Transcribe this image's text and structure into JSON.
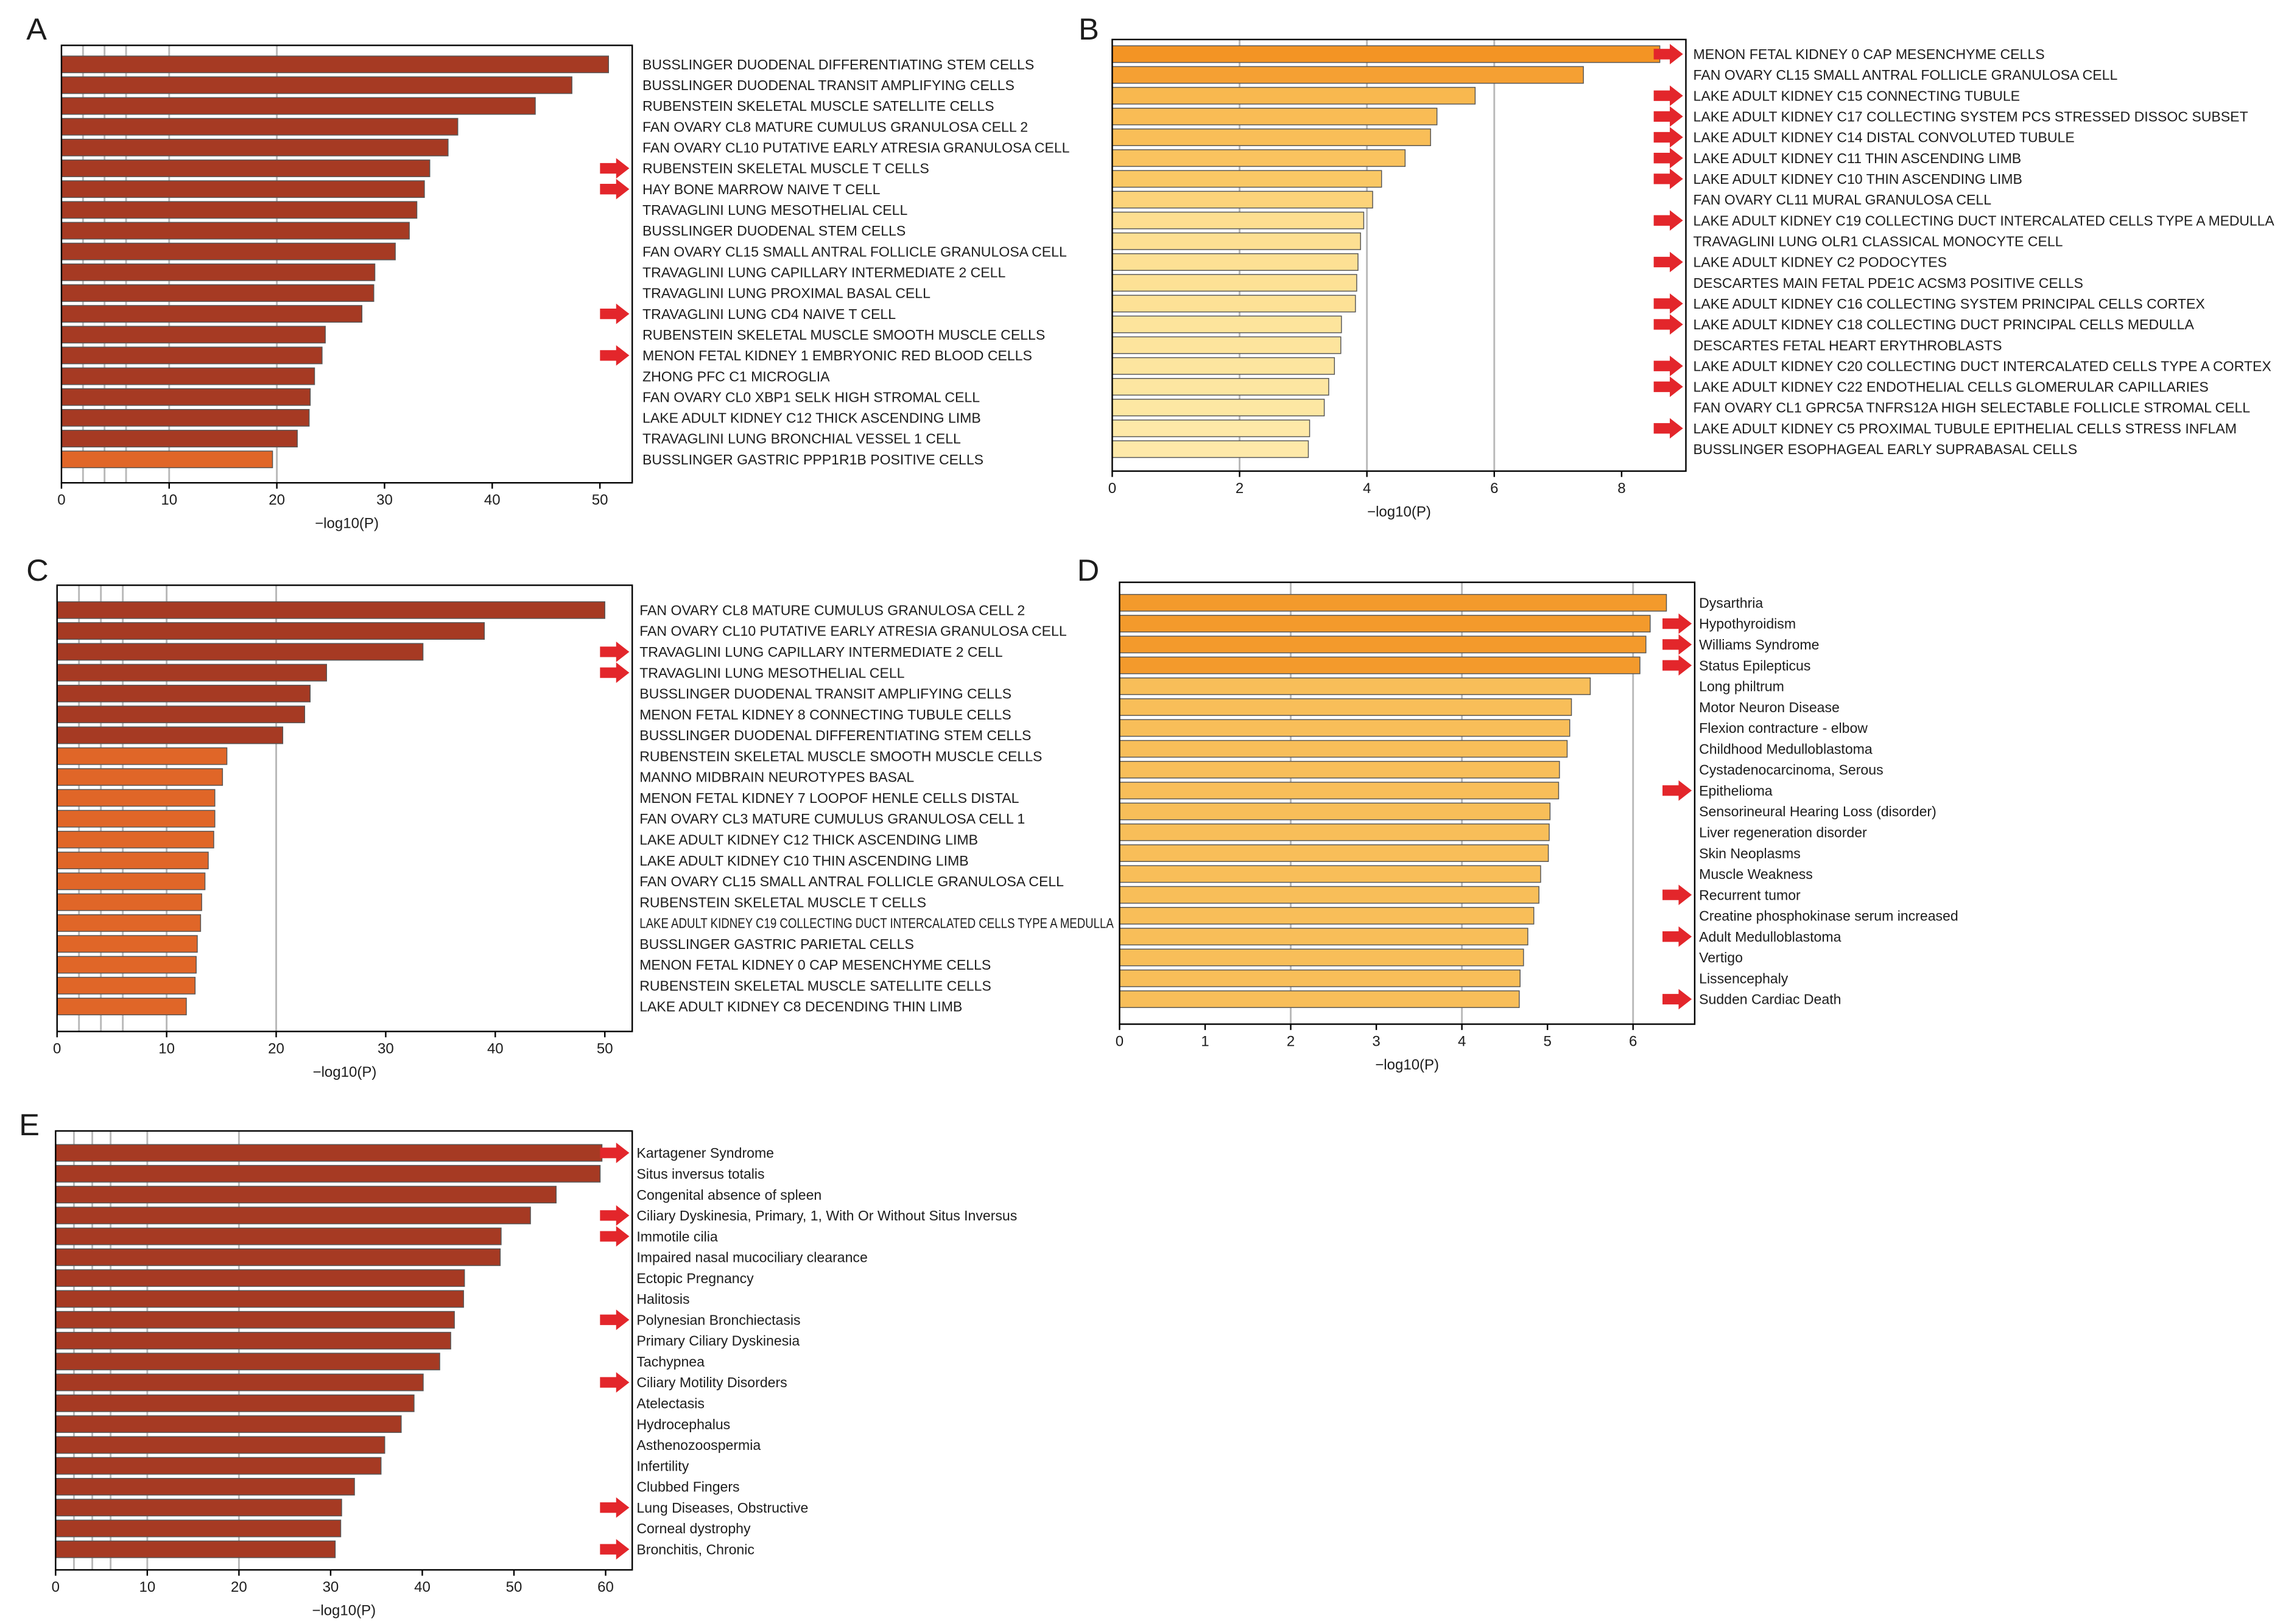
{
  "style": {
    "arrow_color": "#e3262b",
    "bar_edge_color": "#555555",
    "reference_line_color": "#b8b8b8",
    "axis_color": "#000000"
  },
  "chart_data": [
    {
      "panel_label": "A",
      "type": "bar",
      "orientation": "horizontal",
      "xlabel": "−log10(P)",
      "xlim": [
        0,
        53
      ],
      "xticks": [
        0,
        10,
        20,
        30,
        40,
        50
      ],
      "reference_lines": [
        2,
        4,
        6,
        10,
        20
      ],
      "categories": [
        "BUSSLINGER DUODENAL DIFFERENTIATING STEM CELLS",
        "BUSSLINGER DUODENAL TRANSIT AMPLIFYING CELLS",
        "RUBENSTEIN SKELETAL MUSCLE SATELLITE CELLS",
        "FAN OVARY CL8 MATURE CUMULUS GRANULOSA CELL 2",
        "FAN OVARY CL10 PUTATIVE EARLY ATRESIA GRANULOSA CELL",
        "RUBENSTEIN SKELETAL MUSCLE T CELLS",
        "HAY BONE MARROW NAIVE T CELL",
        "TRAVAGLINI LUNG MESOTHELIAL CELL",
        "BUSSLINGER DUODENAL STEM CELLS",
        "FAN OVARY CL15 SMALL ANTRAL FOLLICLE GRANULOSA CELL",
        "TRAVAGLINI LUNG CAPILLARY INTERMEDIATE 2 CELL",
        "TRAVAGLINI LUNG PROXIMAL BASAL CELL",
        "TRAVAGLINI LUNG CD4 NAIVE T CELL",
        "RUBENSTEIN SKELETAL MUSCLE SMOOTH MUSCLE CELLS",
        "MENON FETAL KIDNEY 1 EMBRYONIC RED BLOOD CELLS",
        "ZHONG PFC C1 MICROGLIA",
        "FAN OVARY CL0 XBP1 SELK HIGH STROMAL CELL",
        "LAKE ADULT KIDNEY C12 THICK ASCENDING LIMB",
        "TRAVAGLINI LUNG BRONCHIAL VESSEL 1 CELL",
        "BUSSLINGER GASTRIC PPP1R1B POSITIVE CELLS"
      ],
      "values": [
        50.8,
        47.4,
        44.0,
        36.8,
        35.9,
        34.2,
        33.7,
        33.0,
        32.3,
        31.0,
        29.1,
        29.0,
        27.9,
        24.5,
        24.2,
        23.5,
        23.1,
        23.0,
        21.9,
        19.6
      ],
      "bar_colors": [
        "#a63a23",
        "#a63a23",
        "#a63a23",
        "#a63a23",
        "#a63a23",
        "#a63a23",
        "#a63a23",
        "#a63a23",
        "#a63a23",
        "#a63a23",
        "#a63a23",
        "#a63a23",
        "#a63a23",
        "#a63a23",
        "#a63a23",
        "#a63a23",
        "#a63a23",
        "#a63a23",
        "#a63a23",
        "#e06628"
      ],
      "arrows": [
        false,
        false,
        false,
        false,
        false,
        true,
        true,
        false,
        false,
        false,
        false,
        false,
        true,
        false,
        true,
        false,
        false,
        false,
        false,
        false
      ]
    },
    {
      "panel_label": "B",
      "type": "bar",
      "orientation": "horizontal",
      "xlabel": "−log10(P)",
      "xlim": [
        0,
        9.01
      ],
      "xticks": [
        0,
        2,
        4,
        6,
        8
      ],
      "reference_lines": [
        2,
        4,
        6
      ],
      "categories": [
        "MENON FETAL KIDNEY 0 CAP MESENCHYME CELLS",
        "FAN OVARY CL15 SMALL ANTRAL FOLLICLE GRANULOSA CELL",
        "LAKE ADULT KIDNEY C15 CONNECTING TUBULE",
        "LAKE ADULT KIDNEY C17 COLLECTING SYSTEM PCS STRESSED DISSOC SUBSET",
        "LAKE ADULT KIDNEY C14 DISTAL CONVOLUTED TUBULE",
        "LAKE ADULT KIDNEY C11 THIN ASCENDING LIMB",
        "LAKE ADULT KIDNEY C10 THIN ASCENDING LIMB",
        "FAN OVARY CL11 MURAL GRANULOSA CELL",
        "LAKE ADULT KIDNEY C19 COLLECTING DUCT INTERCALATED CELLS TYPE A MEDULLA",
        "TRAVAGLINI LUNG OLR1 CLASSICAL MONOCYTE CELL",
        "LAKE ADULT KIDNEY C2 PODOCYTES",
        "DESCARTES MAIN FETAL PDE1C ACSM3 POSITIVE CELLS",
        "LAKE ADULT KIDNEY C16 COLLECTING SYSTEM PRINCIPAL CELLS CORTEX",
        "LAKE ADULT KIDNEY C18 COLLECTING DUCT PRINCIPAL CELLS MEDULLA",
        "DESCARTES FETAL HEART ERYTHROBLASTS",
        "LAKE ADULT KIDNEY C20 COLLECTING DUCT INTERCALATED CELLS TYPE A CORTEX",
        "LAKE ADULT KIDNEY C22 ENDOTHELIAL CELLS GLOMERULAR CAPILLARIES",
        "FAN OVARY CL1 GPRC5A TNFRS12A HIGH SELECTABLE FOLLICLE STROMAL CELL",
        "LAKE ADULT KIDNEY C5 PROXIMAL TUBULE EPITHELIAL CELLS STRESS INFLAM",
        "BUSSLINGER ESOPHAGEAL EARLY SUPRABASAL CELLS"
      ],
      "values": [
        8.6,
        7.4,
        5.7,
        5.1,
        5.0,
        4.6,
        4.23,
        4.09,
        3.95,
        3.9,
        3.86,
        3.84,
        3.82,
        3.6,
        3.59,
        3.49,
        3.4,
        3.33,
        3.1,
        3.08
      ],
      "bar_colors": [
        "#f39424",
        "#f5a033",
        "#f8b84f",
        "#f9bc55",
        "#f9be58",
        "#fac35f",
        "#fac865",
        "#fcd37a",
        "#fdde90",
        "#fddf92",
        "#fde094",
        "#fde195",
        "#fde196",
        "#fde49c",
        "#fde49d",
        "#fde59f",
        "#fde6a1",
        "#fde7a3",
        "#fee9a8",
        "#fee9a9"
      ],
      "arrows": [
        true,
        false,
        true,
        true,
        true,
        true,
        true,
        false,
        true,
        false,
        true,
        false,
        true,
        true,
        false,
        true,
        true,
        false,
        true,
        false
      ]
    },
    {
      "panel_label": "C",
      "type": "bar",
      "orientation": "horizontal",
      "xlabel": "−log10(P)",
      "xlim": [
        0,
        52.5
      ],
      "xticks": [
        0,
        10,
        20,
        30,
        40,
        50
      ],
      "reference_lines": [
        2,
        4,
        6,
        10,
        20
      ],
      "categories": [
        "FAN OVARY CL8 MATURE CUMULUS GRANULOSA CELL 2",
        "FAN OVARY CL10 PUTATIVE EARLY ATRESIA GRANULOSA CELL",
        "TRAVAGLINI LUNG CAPILLARY INTERMEDIATE 2 CELL",
        "TRAVAGLINI LUNG MESOTHELIAL CELL",
        "BUSSLINGER DUODENAL TRANSIT AMPLIFYING CELLS",
        "MENON FETAL KIDNEY 8 CONNECTING TUBULE CELLS",
        "BUSSLINGER DUODENAL DIFFERENTIATING STEM CELLS",
        "RUBENSTEIN SKELETAL MUSCLE SMOOTH MUSCLE CELLS",
        "MANNO MIDBRAIN NEUROTYPES BASAL",
        "MENON FETAL KIDNEY 7 LOOPOF HENLE CELLS DISTAL",
        "FAN OVARY CL3 MATURE CUMULUS GRANULOSA CELL 1",
        "LAKE ADULT KIDNEY C12 THICK ASCENDING LIMB",
        "LAKE ADULT KIDNEY C10 THIN ASCENDING LIMB",
        "FAN OVARY CL15 SMALL ANTRAL FOLLICLE GRANULOSA CELL",
        "RUBENSTEIN SKELETAL MUSCLE T CELLS",
        "LAKE ADULT KIDNEY C19 COLLECTING DUCT INTERCALATED CELLS TYPE A MEDULLA",
        "BUSSLINGER GASTRIC PARIETAL CELLS",
        "MENON FETAL KIDNEY 0 CAP MESENCHYME CELLS",
        "RUBENSTEIN SKELETAL MUSCLE SATELLITE CELLS",
        "LAKE ADULT KIDNEY C8 DECENDING THIN LIMB"
      ],
      "values": [
        50.0,
        39.0,
        33.4,
        24.6,
        23.1,
        22.6,
        20.6,
        15.5,
        15.1,
        14.4,
        14.4,
        14.3,
        13.8,
        13.5,
        13.2,
        13.1,
        12.8,
        12.7,
        12.6,
        11.8
      ],
      "bar_colors": [
        "#a63a23",
        "#a63a23",
        "#a63a23",
        "#a63a23",
        "#a63a23",
        "#a63a23",
        "#a63a23",
        "#e06628",
        "#e06628",
        "#e06628",
        "#e06628",
        "#e06628",
        "#e06628",
        "#e06628",
        "#e06628",
        "#e06628",
        "#e06628",
        "#e06628",
        "#e06628",
        "#e06628"
      ],
      "arrows": [
        false,
        false,
        true,
        true,
        false,
        false,
        false,
        false,
        false,
        false,
        false,
        false,
        false,
        false,
        false,
        false,
        false,
        false,
        false,
        false
      ]
    },
    {
      "panel_label": "D",
      "type": "bar",
      "orientation": "horizontal",
      "xlabel": "−log10(P)",
      "xlim": [
        0,
        6.72
      ],
      "xticks": [
        0,
        1,
        2,
        3,
        4,
        5,
        6
      ],
      "reference_lines": [
        2,
        4,
        6
      ],
      "categories": [
        "Dysarthria",
        "Hypothyroidism",
        "Williams Syndrome",
        "Status Epilepticus",
        "Long philtrum",
        "Motor Neuron Disease",
        "Flexion contracture - elbow",
        "Childhood Medulloblastoma",
        "Cystadenocarcinoma, Serous",
        "Epithelioma",
        "Sensorineural Hearing Loss (disorder)",
        "Liver regeneration disorder",
        "Skin Neoplasms",
        "Muscle Weakness",
        "Recurrent tumor",
        "Creatine phosphokinase serum increased",
        "Adult Medulloblastoma",
        "Vertigo",
        "Lissencephaly",
        "Sudden Cardiac Death"
      ],
      "values": [
        6.39,
        6.2,
        6.15,
        6.08,
        5.5,
        5.28,
        5.26,
        5.23,
        5.14,
        5.13,
        5.03,
        5.02,
        5.01,
        4.92,
        4.9,
        4.84,
        4.77,
        4.72,
        4.68,
        4.67
      ],
      "bar_colors": [
        "#f39a2c",
        "#f39a2c",
        "#f39a2c",
        "#f39a2c",
        "#f8be59",
        "#f8be59",
        "#f8be59",
        "#f8be59",
        "#f8be59",
        "#f8be59",
        "#f8be59",
        "#f8be59",
        "#f8be59",
        "#f8be59",
        "#f8be59",
        "#f8be59",
        "#f8be59",
        "#f8be59",
        "#f8be59",
        "#f8be59"
      ],
      "arrows": [
        false,
        true,
        true,
        true,
        false,
        false,
        false,
        false,
        false,
        true,
        false,
        false,
        false,
        false,
        true,
        false,
        true,
        false,
        false,
        true
      ]
    },
    {
      "panel_label": "E",
      "type": "bar",
      "orientation": "horizontal",
      "xlabel": "−log10(P)",
      "xlim": [
        0,
        62.9
      ],
      "xticks": [
        0,
        10,
        20,
        30,
        40,
        50,
        60
      ],
      "reference_lines": [
        2,
        4,
        6,
        10,
        20
      ],
      "categories": [
        "Kartagener Syndrome",
        "Situs inversus totalis",
        "Congenital absence of spleen",
        "Ciliary Dyskinesia, Primary, 1, With Or Without Situs Inversus",
        "Immotile cilia",
        "Impaired nasal mucociliary clearance",
        "Ectopic Pregnancy",
        "Halitosis",
        "Polynesian Bronchiectasis",
        "Primary Ciliary Dyskinesia",
        "Tachypnea",
        "Ciliary Motility Disorders",
        "Atelectasis",
        "Hydrocephalus",
        "Asthenozoospermia",
        "Infertility",
        "Clubbed Fingers",
        "Lung Diseases, Obstructive",
        "Corneal dystrophy",
        "Bronchitis, Chronic"
      ],
      "values": [
        59.6,
        59.4,
        54.6,
        51.8,
        48.6,
        48.5,
        44.6,
        44.5,
        43.5,
        43.1,
        41.9,
        40.1,
        39.1,
        37.7,
        35.9,
        35.5,
        32.6,
        31.2,
        31.1,
        30.5
      ],
      "bar_colors": [
        "#a63a23",
        "#a63a23",
        "#a63a23",
        "#a63a23",
        "#a63a23",
        "#a63a23",
        "#a63a23",
        "#a63a23",
        "#a63a23",
        "#a63a23",
        "#a63a23",
        "#a63a23",
        "#a63a23",
        "#a63a23",
        "#a63a23",
        "#a63a23",
        "#a63a23",
        "#a63a23",
        "#a63a23",
        "#a63a23"
      ],
      "arrows": [
        true,
        false,
        false,
        true,
        true,
        false,
        false,
        false,
        true,
        false,
        false,
        true,
        false,
        false,
        false,
        false,
        false,
        true,
        false,
        true
      ]
    }
  ]
}
